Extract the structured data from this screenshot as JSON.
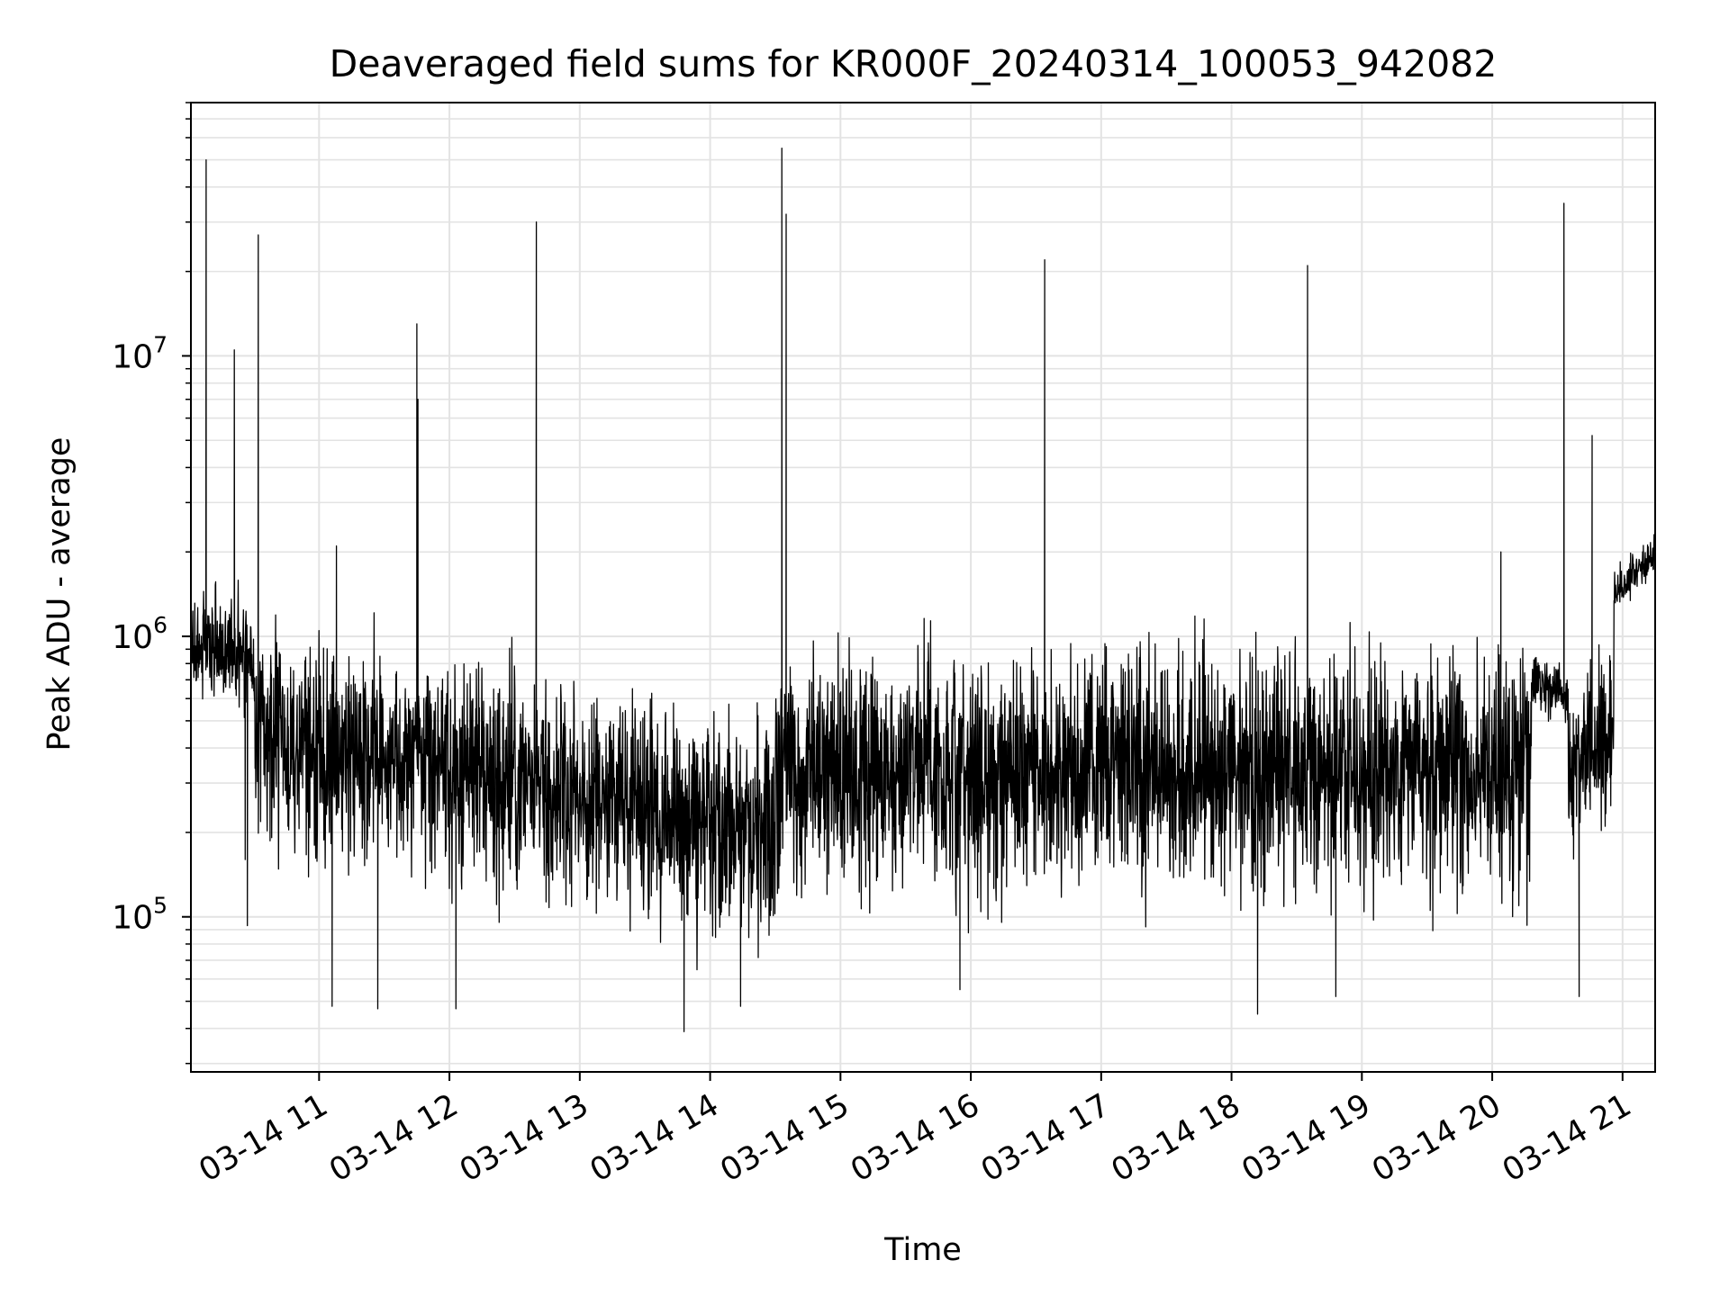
{
  "chart_data": {
    "type": "line",
    "title": "Deaveraged field sums for KR000F_20240314_100053_942082",
    "xlabel": "Time",
    "ylabel": "Peak ADU - average",
    "x_range": [
      "2024-03-14T10:01:00",
      "2024-03-14T21:15:00"
    ],
    "y_scale": "log",
    "ylim": [
      28000,
      80000000
    ],
    "grid": true,
    "x_ticks": [
      {
        "value": "2024-03-14T11:00:00",
        "label": "03-14 11"
      },
      {
        "value": "2024-03-14T12:00:00",
        "label": "03-14 12"
      },
      {
        "value": "2024-03-14T13:00:00",
        "label": "03-14 13"
      },
      {
        "value": "2024-03-14T14:00:00",
        "label": "03-14 14"
      },
      {
        "value": "2024-03-14T15:00:00",
        "label": "03-14 15"
      },
      {
        "value": "2024-03-14T16:00:00",
        "label": "03-14 16"
      },
      {
        "value": "2024-03-14T17:00:00",
        "label": "03-14 17"
      },
      {
        "value": "2024-03-14T18:00:00",
        "label": "03-14 18"
      },
      {
        "value": "2024-03-14T19:00:00",
        "label": "03-14 19"
      },
      {
        "value": "2024-03-14T20:00:00",
        "label": "03-14 20"
      },
      {
        "value": "2024-03-14T21:00:00",
        "label": "03-14 21"
      }
    ],
    "y_ticks": [
      {
        "value": 100000,
        "base": "10",
        "exp": "5"
      },
      {
        "value": 1000000,
        "base": "10",
        "exp": "6"
      },
      {
        "value": 10000000,
        "base": "10",
        "exp": "7"
      }
    ],
    "series_color": "#000000",
    "baseline_segments": [
      {
        "from": "2024-03-14T10:01:00",
        "to": "2024-03-14T10:30:00",
        "median_start": 900000,
        "median_end": 900000,
        "spread": 2.0
      },
      {
        "from": "2024-03-14T10:30:00",
        "to": "2024-03-14T14:30:00",
        "median_start": 450000,
        "median_end": 200000,
        "spread": 3.6
      },
      {
        "from": "2024-03-14T14:30:00",
        "to": "2024-03-14T20:18:00",
        "median_start": 330000,
        "median_end": 330000,
        "spread": 4.0
      },
      {
        "from": "2024-03-14T20:18:00",
        "to": "2024-03-14T20:35:00",
        "median_start": 700000,
        "median_end": 600000,
        "spread": 1.4
      },
      {
        "from": "2024-03-14T20:35:00",
        "to": "2024-03-14T20:56:00",
        "median_start": 330000,
        "median_end": 420000,
        "spread": 2.6
      },
      {
        "from": "2024-03-14T20:56:00",
        "to": "2024-03-14T21:15:00",
        "median_start": 1400000,
        "median_end": 2000000,
        "spread": 1.3
      }
    ],
    "spikes": [
      {
        "x": "2024-03-14T10:08:00",
        "y": 50000000
      },
      {
        "x": "2024-03-14T10:21:00",
        "y": 10500000
      },
      {
        "x": "2024-03-14T10:32:00",
        "y": 27000000
      },
      {
        "x": "2024-03-14T11:08:00",
        "y": 2100000
      },
      {
        "x": "2024-03-14T11:45:00",
        "y": 13000000
      },
      {
        "x": "2024-03-14T11:45:30",
        "y": 7000000
      },
      {
        "x": "2024-03-14T12:40:00",
        "y": 30000000
      },
      {
        "x": "2024-03-14T14:33:00",
        "y": 55000000
      },
      {
        "x": "2024-03-14T14:35:00",
        "y": 32000000
      },
      {
        "x": "2024-03-14T16:34:00",
        "y": 22000000
      },
      {
        "x": "2024-03-14T18:35:00",
        "y": 21000000
      },
      {
        "x": "2024-03-14T20:04:00",
        "y": 2000000
      },
      {
        "x": "2024-03-14T20:33:00",
        "y": 35000000
      },
      {
        "x": "2024-03-14T20:46:00",
        "y": 5200000
      }
    ],
    "dips": [
      {
        "x": "2024-03-14T10:26:00",
        "y": 160000
      },
      {
        "x": "2024-03-14T10:27:00",
        "y": 93000
      },
      {
        "x": "2024-03-14T11:06:00",
        "y": 48000
      },
      {
        "x": "2024-03-14T11:27:00",
        "y": 47000
      },
      {
        "x": "2024-03-14T12:03:00",
        "y": 47000
      },
      {
        "x": "2024-03-14T13:48:00",
        "y": 39000
      },
      {
        "x": "2024-03-14T14:14:00",
        "y": 48000
      },
      {
        "x": "2024-03-14T15:55:00",
        "y": 55000
      },
      {
        "x": "2024-03-14T18:12:00",
        "y": 45000
      },
      {
        "x": "2024-03-14T18:48:00",
        "y": 52000
      },
      {
        "x": "2024-03-14T20:40:00",
        "y": 52000
      }
    ]
  }
}
